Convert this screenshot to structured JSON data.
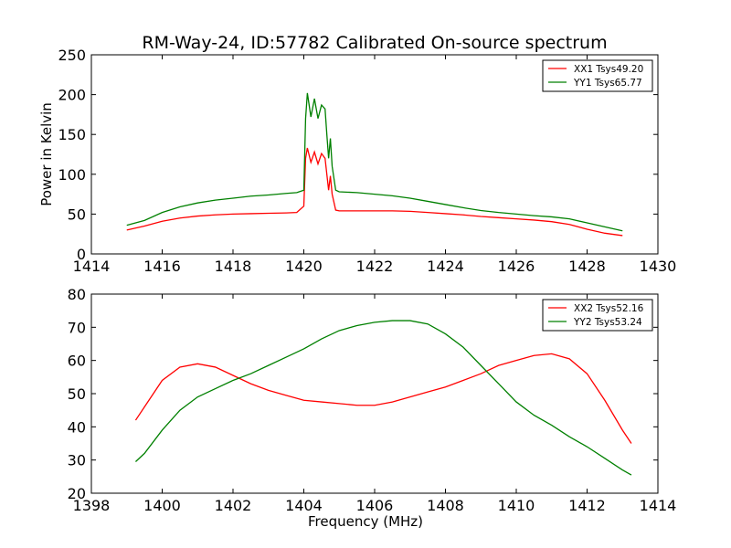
{
  "title": "RM-Way-24, ID:57782 Calibrated On-source spectrum",
  "chart_data": [
    {
      "type": "line",
      "ylabel": "Power in Kelvin",
      "xlabel": "",
      "xlim": [
        1414,
        1430
      ],
      "ylim": [
        0,
        250
      ],
      "xticks": [
        "1414",
        "1416",
        "1418",
        "1420",
        "1422",
        "1424",
        "1426",
        "1428",
        "1430"
      ],
      "yticks": [
        "0",
        "50",
        "100",
        "150",
        "200",
        "250"
      ],
      "grid": false,
      "legend_position": "top-right",
      "series": [
        {
          "name": "XX1 Tsys49.20",
          "color": "#ff0000",
          "points": [
            [
              1415.0,
              30
            ],
            [
              1415.5,
              35
            ],
            [
              1416.0,
              41
            ],
            [
              1416.5,
              45
            ],
            [
              1417.0,
              47.5
            ],
            [
              1417.5,
              49
            ],
            [
              1418.0,
              50
            ],
            [
              1418.5,
              50.5
            ],
            [
              1419.0,
              51
            ],
            [
              1419.5,
              51.5
            ],
            [
              1419.8,
              52
            ],
            [
              1420.0,
              60
            ],
            [
              1420.05,
              120
            ],
            [
              1420.1,
              133
            ],
            [
              1420.2,
              115
            ],
            [
              1420.3,
              128
            ],
            [
              1420.4,
              113
            ],
            [
              1420.5,
              126
            ],
            [
              1420.6,
              120
            ],
            [
              1420.65,
              100
            ],
            [
              1420.7,
              80
            ],
            [
              1420.75,
              98
            ],
            [
              1420.8,
              75
            ],
            [
              1420.9,
              55
            ],
            [
              1421.0,
              54
            ],
            [
              1421.5,
              54
            ],
            [
              1422.0,
              54
            ],
            [
              1422.5,
              54
            ],
            [
              1423.0,
              53.5
            ],
            [
              1423.5,
              52
            ],
            [
              1424.0,
              50.5
            ],
            [
              1424.5,
              49
            ],
            [
              1425.0,
              47
            ],
            [
              1425.5,
              45.5
            ],
            [
              1426.0,
              44
            ],
            [
              1426.5,
              42.5
            ],
            [
              1427.0,
              40.5
            ],
            [
              1427.5,
              37
            ],
            [
              1428.0,
              31
            ],
            [
              1428.5,
              26
            ],
            [
              1429.0,
              23
            ]
          ]
        },
        {
          "name": "YY1 Tsys65.77",
          "color": "#008000",
          "points": [
            [
              1415.0,
              36
            ],
            [
              1415.5,
              42
            ],
            [
              1416.0,
              52
            ],
            [
              1416.5,
              59
            ],
            [
              1417.0,
              64
            ],
            [
              1417.5,
              67.5
            ],
            [
              1418.0,
              70
            ],
            [
              1418.5,
              72.5
            ],
            [
              1419.0,
              74
            ],
            [
              1419.5,
              76
            ],
            [
              1419.8,
              77
            ],
            [
              1420.0,
              80
            ],
            [
              1420.05,
              170
            ],
            [
              1420.1,
              202
            ],
            [
              1420.2,
              172
            ],
            [
              1420.3,
              195
            ],
            [
              1420.4,
              170
            ],
            [
              1420.5,
              187
            ],
            [
              1420.6,
              182
            ],
            [
              1420.65,
              150
            ],
            [
              1420.7,
              120
            ],
            [
              1420.75,
              145
            ],
            [
              1420.8,
              110
            ],
            [
              1420.9,
              80
            ],
            [
              1421.0,
              78
            ],
            [
              1421.5,
              77
            ],
            [
              1422.0,
              75
            ],
            [
              1422.5,
              73
            ],
            [
              1423.0,
              70
            ],
            [
              1423.5,
              66
            ],
            [
              1424.0,
              62
            ],
            [
              1424.5,
              58
            ],
            [
              1425.0,
              54.5
            ],
            [
              1425.5,
              52
            ],
            [
              1426.0,
              50
            ],
            [
              1426.5,
              48
            ],
            [
              1427.0,
              46.5
            ],
            [
              1427.5,
              44
            ],
            [
              1428.0,
              39
            ],
            [
              1428.5,
              34
            ],
            [
              1429.0,
              29
            ]
          ]
        }
      ]
    },
    {
      "type": "line",
      "ylabel": "",
      "xlabel": "Frequency (MHz)",
      "xlim": [
        1398,
        1414
      ],
      "ylim": [
        20,
        80
      ],
      "xticks": [
        "1398",
        "1400",
        "1402",
        "1404",
        "1406",
        "1408",
        "1410",
        "1412",
        "1414"
      ],
      "yticks": [
        "20",
        "30",
        "40",
        "50",
        "60",
        "70",
        "80"
      ],
      "grid": false,
      "legend_position": "top-right",
      "series": [
        {
          "name": "XX2 Tsys52.16",
          "color": "#ff0000",
          "points": [
            [
              1399.25,
              42
            ],
            [
              1399.5,
              46
            ],
            [
              1400.0,
              54
            ],
            [
              1400.5,
              58
            ],
            [
              1401.0,
              59
            ],
            [
              1401.5,
              58
            ],
            [
              1402.0,
              55.5
            ],
            [
              1402.5,
              53
            ],
            [
              1403.0,
              51
            ],
            [
              1403.5,
              49.5
            ],
            [
              1404.0,
              48
            ],
            [
              1404.5,
              47.5
            ],
            [
              1405.0,
              47
            ],
            [
              1405.5,
              46.5
            ],
            [
              1406.0,
              46.5
            ],
            [
              1406.5,
              47.5
            ],
            [
              1407.0,
              49
            ],
            [
              1407.5,
              50.5
            ],
            [
              1408.0,
              52
            ],
            [
              1408.5,
              54
            ],
            [
              1409.0,
              56
            ],
            [
              1409.5,
              58.5
            ],
            [
              1410.0,
              60
            ],
            [
              1410.5,
              61.5
            ],
            [
              1411.0,
              62
            ],
            [
              1411.5,
              60.5
            ],
            [
              1412.0,
              56
            ],
            [
              1412.5,
              48
            ],
            [
              1413.0,
              39
            ],
            [
              1413.25,
              35
            ]
          ]
        },
        {
          "name": "YY2 Tsys53.24",
          "color": "#008000",
          "points": [
            [
              1399.25,
              29.5
            ],
            [
              1399.5,
              32
            ],
            [
              1400.0,
              39
            ],
            [
              1400.5,
              45
            ],
            [
              1401.0,
              49
            ],
            [
              1401.5,
              51.5
            ],
            [
              1402.0,
              54
            ],
            [
              1402.5,
              56
            ],
            [
              1403.0,
              58.5
            ],
            [
              1403.5,
              61
            ],
            [
              1404.0,
              63.5
            ],
            [
              1404.5,
              66.5
            ],
            [
              1405.0,
              69
            ],
            [
              1405.5,
              70.5
            ],
            [
              1406.0,
              71.5
            ],
            [
              1406.5,
              72
            ],
            [
              1407.0,
              72
            ],
            [
              1407.5,
              71
            ],
            [
              1408.0,
              68
            ],
            [
              1408.5,
              64
            ],
            [
              1409.0,
              58.5
            ],
            [
              1409.5,
              53
            ],
            [
              1410.0,
              47.5
            ],
            [
              1410.5,
              43.5
            ],
            [
              1411.0,
              40.5
            ],
            [
              1411.5,
              37
            ],
            [
              1412.0,
              34
            ],
            [
              1412.5,
              30.5
            ],
            [
              1413.0,
              27
            ],
            [
              1413.25,
              25.5
            ]
          ]
        }
      ]
    }
  ]
}
